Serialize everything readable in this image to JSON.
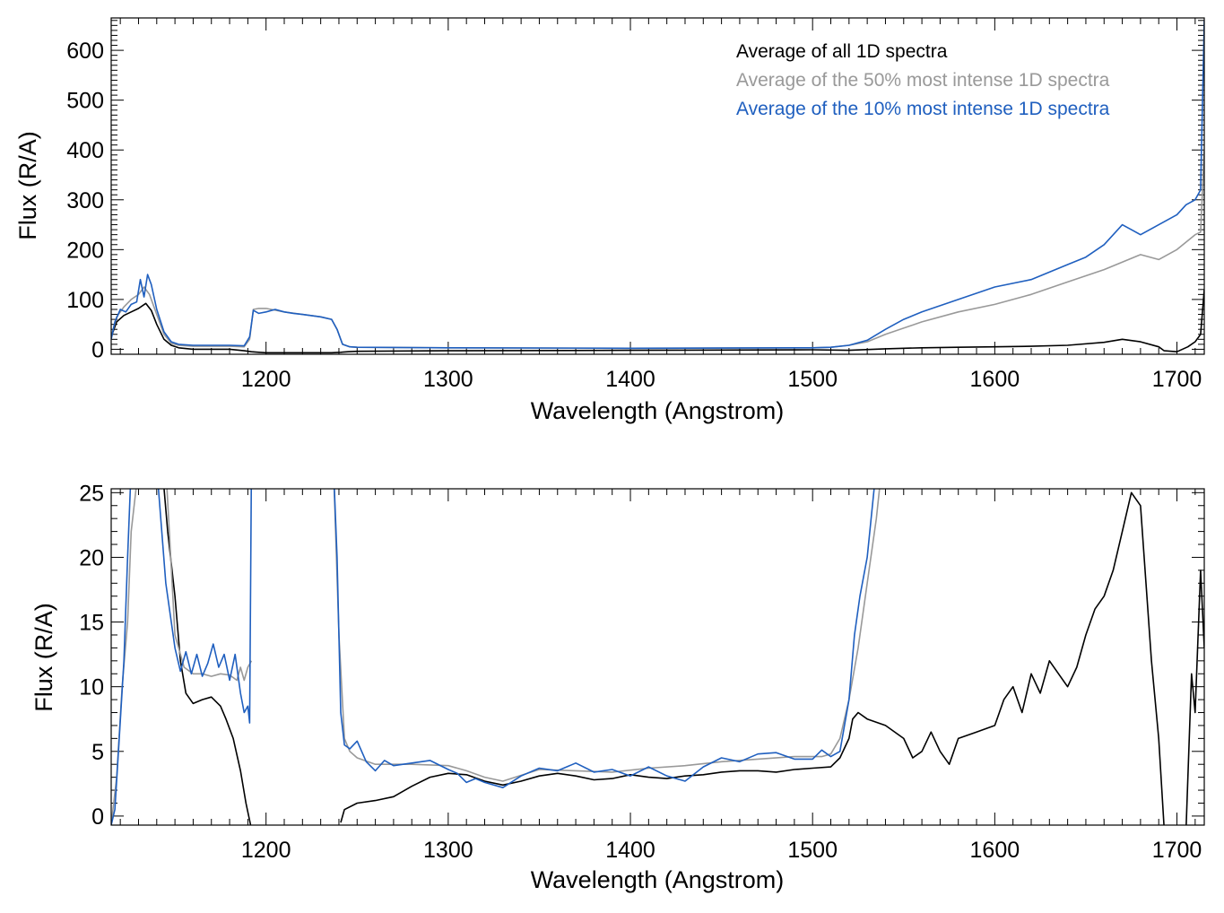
{
  "colors": {
    "all": "#000000",
    "top50": "#999999",
    "top10": "#1f5fbf"
  },
  "chart_data": [
    {
      "type": "line",
      "xlabel": "Wavelength (Angstrom)",
      "ylabel": "Flux (R/A)",
      "xlim": [
        1115,
        1715
      ],
      "ylim": [
        -10,
        665
      ],
      "xticks": [
        1200,
        1300,
        1400,
        1500,
        1600,
        1700
      ],
      "yticks": [
        0,
        100,
        200,
        300,
        400,
        500,
        600
      ],
      "grid": false,
      "legend_position": "top-right",
      "series": [
        {
          "name": "Average of all 1D spectra",
          "color": "#000000",
          "x": [
            1115,
            1118,
            1122,
            1126,
            1130,
            1134,
            1137,
            1140,
            1144,
            1148,
            1152,
            1160,
            1170,
            1180,
            1188,
            1192,
            1196,
            1200,
            1210,
            1220,
            1230,
            1236,
            1241,
            1245,
            1250,
            1300,
            1400,
            1500,
            1520,
            1540,
            1560,
            1580,
            1600,
            1620,
            1640,
            1660,
            1670,
            1680,
            1690,
            1693,
            1700,
            1706,
            1710,
            1713,
            1715
          ],
          "y": [
            25,
            55,
            68,
            75,
            82,
            92,
            78,
            50,
            20,
            8,
            3,
            0,
            0,
            0,
            -3,
            -5,
            -6,
            -7,
            -7,
            -7,
            -7,
            -7,
            -6,
            -5,
            -4,
            -3,
            -2,
            -1,
            -2,
            1,
            3,
            4,
            5,
            6,
            8,
            14,
            20,
            15,
            5,
            -3,
            -5,
            5,
            15,
            30,
            120
          ]
        },
        {
          "name": "Average of the 50% most intense 1D spectra",
          "color": "#999999",
          "x": [
            1115,
            1118,
            1122,
            1126,
            1130,
            1133,
            1136,
            1140,
            1144,
            1148,
            1152,
            1160,
            1170,
            1180,
            1188,
            1191,
            1193,
            1196,
            1200,
            1210,
            1220,
            1230,
            1236,
            1239,
            1242,
            1246,
            1250,
            1300,
            1400,
            1500,
            1510,
            1520,
            1530,
            1540,
            1560,
            1580,
            1600,
            1620,
            1640,
            1660,
            1680,
            1690,
            1700,
            1710,
            1713,
            1715
          ],
          "y": [
            25,
            65,
            85,
            100,
            110,
            125,
            110,
            70,
            30,
            12,
            8,
            6,
            6,
            6,
            5,
            20,
            80,
            82,
            82,
            75,
            70,
            65,
            60,
            40,
            10,
            5,
            4,
            3,
            2,
            3,
            4,
            8,
            15,
            30,
            55,
            75,
            90,
            110,
            135,
            160,
            190,
            180,
            200,
            230,
            235,
            400
          ]
        },
        {
          "name": "Average of the 10% most intense 1D spectra",
          "color": "#1f5fbf",
          "x": [
            1115,
            1117,
            1120,
            1123,
            1126,
            1129,
            1131,
            1133,
            1135,
            1137,
            1140,
            1144,
            1148,
            1152,
            1160,
            1170,
            1180,
            1188,
            1191,
            1193,
            1196,
            1200,
            1205,
            1210,
            1215,
            1220,
            1230,
            1236,
            1239,
            1242,
            1246,
            1250,
            1300,
            1400,
            1500,
            1510,
            1520,
            1530,
            1540,
            1550,
            1560,
            1580,
            1600,
            1620,
            1640,
            1650,
            1660,
            1670,
            1675,
            1680,
            1690,
            1700,
            1705,
            1710,
            1713,
            1715
          ],
          "y": [
            20,
            55,
            80,
            75,
            90,
            95,
            140,
            105,
            150,
            130,
            80,
            35,
            15,
            10,
            8,
            8,
            8,
            7,
            25,
            78,
            72,
            75,
            80,
            75,
            72,
            70,
            65,
            60,
            40,
            10,
            5,
            4,
            3,
            2,
            3,
            4,
            8,
            18,
            40,
            60,
            75,
            100,
            125,
            140,
            170,
            185,
            210,
            250,
            240,
            230,
            250,
            270,
            290,
            300,
            320,
            660
          ]
        }
      ]
    },
    {
      "type": "line",
      "xlabel": "Wavelength (Angstrom)",
      "ylabel": "Flux (R/A)",
      "xlim": [
        1115,
        1715
      ],
      "ylim": [
        -0.7,
        25.3
      ],
      "xticks": [
        1200,
        1300,
        1400,
        1500,
        1600,
        1700
      ],
      "yticks": [
        0,
        5,
        10,
        15,
        20,
        25
      ],
      "grid": false,
      "series": [
        {
          "name": "Average of all 1D spectra",
          "color": "#000000",
          "x": [
            1143,
            1146,
            1150,
            1153,
            1156,
            1160,
            1165,
            1170,
            1175,
            1178,
            1182,
            1186,
            1189,
            1192,
            null,
            1241,
            1243,
            1250,
            1260,
            1270,
            1280,
            1290,
            1300,
            1310,
            1320,
            1330,
            1340,
            1350,
            1360,
            1370,
            1380,
            1390,
            1400,
            1410,
            1420,
            1430,
            1440,
            1450,
            1460,
            1470,
            1480,
            1490,
            1500,
            1510,
            1515,
            1520,
            1522,
            1525,
            1530,
            1540,
            1550,
            1555,
            1560,
            1565,
            1570,
            1575,
            1580,
            1590,
            1600,
            1605,
            1610,
            1615,
            1620,
            1625,
            1630,
            1640,
            1645,
            1650,
            1655,
            1660,
            1665,
            1670,
            1675,
            1680,
            1683,
            1686,
            1690,
            1693,
            null,
            1705,
            1708,
            1710,
            1713,
            1715
          ],
          "y": [
            27,
            22,
            17,
            12,
            9.5,
            8.7,
            9,
            9.2,
            8.5,
            7.5,
            6,
            3.5,
            1,
            -1,
            null,
            -0.5,
            0.5,
            1,
            1.2,
            1.5,
            2.3,
            3,
            3.3,
            3.2,
            2.7,
            2.4,
            2.7,
            3.1,
            3.3,
            3.1,
            2.8,
            2.9,
            3.2,
            3,
            2.9,
            3.1,
            3.2,
            3.4,
            3.5,
            3.5,
            3.4,
            3.6,
            3.7,
            3.8,
            4.5,
            6,
            7.5,
            8,
            7.5,
            7,
            6,
            4.5,
            5,
            6.5,
            5,
            4,
            6,
            6.5,
            7,
            9,
            10,
            8,
            11,
            9.5,
            12,
            10,
            11.5,
            14,
            16,
            17,
            19,
            22,
            25,
            24,
            18,
            12,
            6,
            -1,
            null,
            -1,
            11,
            8,
            19,
            13
          ]
        },
        {
          "name": "Average of the 50% most intense 1D spectra",
          "color": "#999999",
          "x": [
            1115,
            1118,
            1121,
            1124,
            1126,
            1130,
            1145,
            1150,
            1155,
            1160,
            1165,
            1170,
            1175,
            1180,
            1184,
            1186,
            1188,
            1190,
            1192,
            null,
            1237,
            1240,
            1243,
            1246,
            1250,
            1260,
            1280,
            1300,
            1310,
            1320,
            1330,
            1350,
            1370,
            1390,
            1410,
            1430,
            1450,
            1470,
            1490,
            1505,
            1510,
            1515,
            1520,
            1525,
            1530,
            1535,
            1538
          ],
          "y": [
            -0.7,
            3,
            10,
            15,
            22,
            27,
            27,
            14,
            11.5,
            11,
            11,
            10.8,
            11,
            10.9,
            10.5,
            11.5,
            10.5,
            11.5,
            12,
            null,
            27,
            14,
            6,
            5,
            4.5,
            4,
            4,
            3.9,
            3.5,
            3,
            2.7,
            3.6,
            3.5,
            3.4,
            3.7,
            3.9,
            4.2,
            4.4,
            4.6,
            4.6,
            4.8,
            6,
            9,
            13,
            18,
            23,
            27
          ]
        },
        {
          "name": "Average of the 10% most intense 1D spectra",
          "color": "#1f5fbf",
          "x": [
            1115,
            1117,
            1119,
            1122,
            1124,
            1126,
            1140,
            1145,
            1150,
            1153,
            1156,
            1159,
            1162,
            1165,
            1168,
            1171,
            1174,
            1177,
            1180,
            1183,
            1186,
            1188,
            1190,
            1191,
            1192,
            null,
            1237,
            1239,
            1241,
            1243,
            1246,
            1250,
            1255,
            1260,
            1265,
            1270,
            1280,
            1290,
            1300,
            1305,
            1310,
            1315,
            1320,
            1330,
            1340,
            1350,
            1360,
            1370,
            1380,
            1390,
            1400,
            1410,
            1420,
            1430,
            1440,
            1450,
            1460,
            1470,
            1480,
            1490,
            1500,
            1505,
            1510,
            1515,
            1520,
            1523,
            1526,
            1530,
            1535
          ],
          "y": [
            -0.7,
            0.5,
            5,
            12,
            20,
            27,
            27,
            18,
            13,
            11.2,
            12.7,
            11,
            12.5,
            10.8,
            11.8,
            13.3,
            11.5,
            12.5,
            10.5,
            12.5,
            9.5,
            8,
            8.5,
            7.2,
            27,
            null,
            27,
            20,
            8,
            5.5,
            5.2,
            5.8,
            4.2,
            3.5,
            4.3,
            3.9,
            4.1,
            4.3,
            3.6,
            3.3,
            2.6,
            2.9,
            2.6,
            2.2,
            3.1,
            3.7,
            3.5,
            4.1,
            3.4,
            3.6,
            3.1,
            3.8,
            3.1,
            2.7,
            3.8,
            4.5,
            4.2,
            4.8,
            4.9,
            4.4,
            4.4,
            5.1,
            4.6,
            5,
            9,
            14,
            17,
            20,
            27
          ]
        }
      ]
    }
  ]
}
